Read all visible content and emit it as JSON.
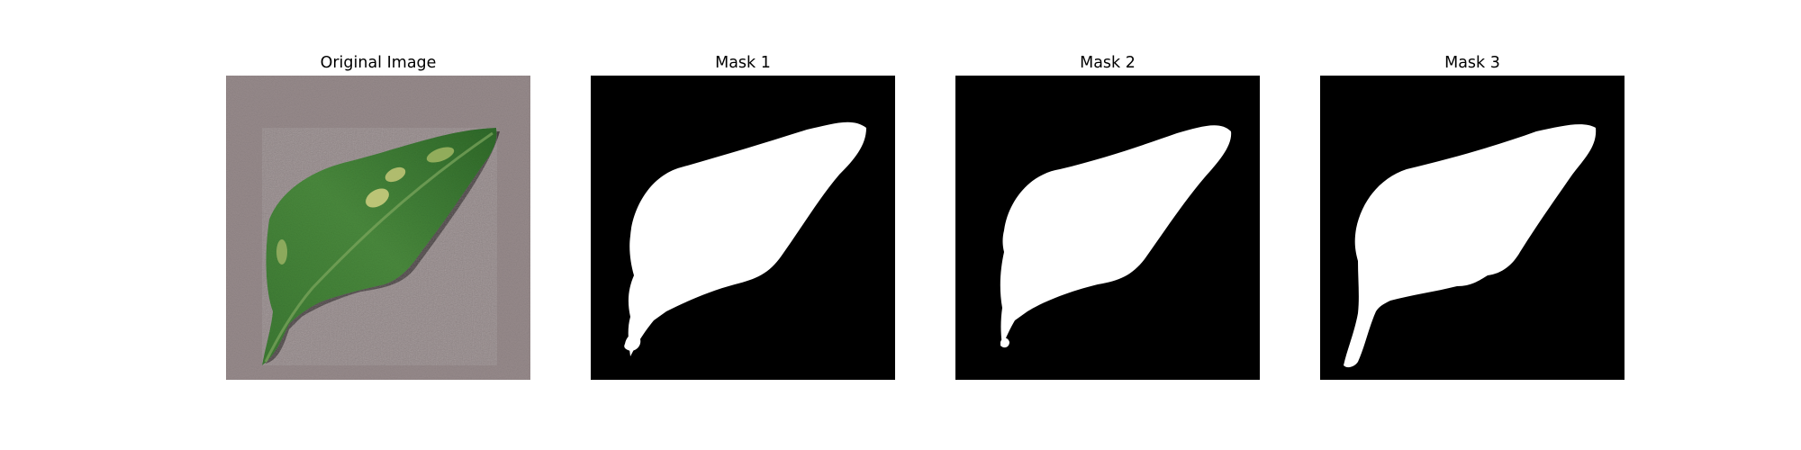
{
  "figure": {
    "panels": [
      {
        "title": "Original Image"
      },
      {
        "title": "Mask 1"
      },
      {
        "title": "Mask 2"
      },
      {
        "title": "Mask 3"
      }
    ]
  },
  "colors": {
    "background": "#ffffff",
    "mask_background": "#000000",
    "mask_foreground": "#ffffff",
    "paper": "#978b8b",
    "leaf_dark": "#2f6b2c",
    "leaf_mid": "#4c8a3c",
    "lesion": "#b9c66a"
  }
}
